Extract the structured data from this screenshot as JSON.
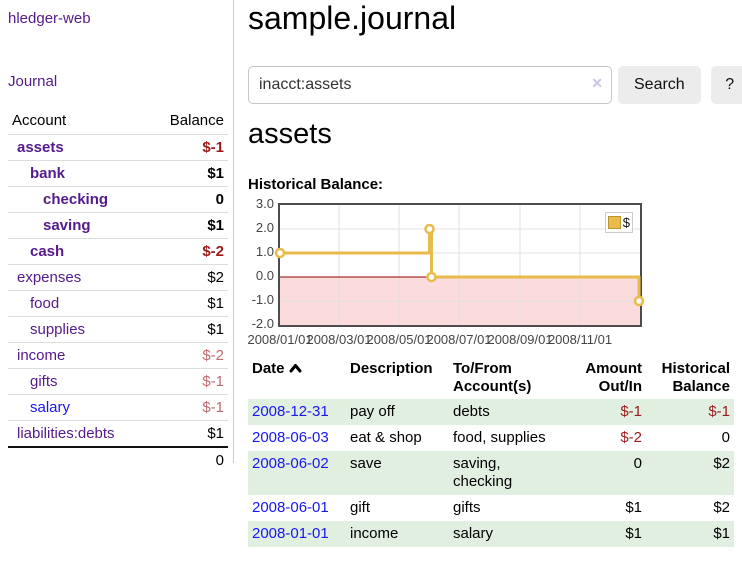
{
  "app": {
    "title": "hledger-web"
  },
  "sidebar": {
    "journal_label": "Journal",
    "headers": {
      "account": "Account",
      "balance": "Balance"
    },
    "rows": [
      {
        "account": "assets",
        "balance": "$-1"
      },
      {
        "account": "bank",
        "balance": "$1"
      },
      {
        "account": "checking",
        "balance": "0"
      },
      {
        "account": "saving",
        "balance": "$1"
      },
      {
        "account": "cash",
        "balance": "$-2"
      },
      {
        "account": "expenses",
        "balance": "$2"
      },
      {
        "account": "food",
        "balance": "$1"
      },
      {
        "account": "supplies",
        "balance": "$1"
      },
      {
        "account": "income",
        "balance": "$-2"
      },
      {
        "account": "gifts",
        "balance": "$-1"
      },
      {
        "account": "salary",
        "balance": "$-1"
      },
      {
        "account": "liabilities:debts",
        "balance": "$1"
      }
    ],
    "total": "0"
  },
  "main": {
    "title": "sample.journal",
    "search": {
      "value": "inacct:assets",
      "clear_icon": "✕",
      "button_label": "Search",
      "help_label": "?"
    },
    "account_heading": "assets",
    "chart_label": "Historical Balance:"
  },
  "chart_data": {
    "type": "line",
    "subtype": "step-after",
    "title": "Historical Balance",
    "x_domain": [
      "2008/01/01",
      "2009/01/01"
    ],
    "ylim": [
      -2,
      3
    ],
    "yticks": [
      "3.0",
      "2.0",
      "1.0",
      "0.0",
      "-1.0",
      "-2.0"
    ],
    "xticks": [
      "2008/01/01",
      "2008/03/01",
      "2008/05/01",
      "2008/07/01",
      "2008/09/01",
      "2008/11/01"
    ],
    "grid": true,
    "legend_position": "top-right",
    "negative_region_color": "#fbdbdb",
    "zero_line_color": "#8b0000",
    "series": [
      {
        "name": "$",
        "color": "#e8bb4a",
        "points": [
          [
            "2008/01/01",
            1
          ],
          [
            "2008/06/01",
            2
          ],
          [
            "2008/06/03",
            0
          ],
          [
            "2008/12/31",
            -1
          ]
        ]
      }
    ]
  },
  "register": {
    "headers": {
      "date": "Date",
      "description": "Description",
      "accounts": "To/From Account(s)",
      "amount": "Amount Out/In",
      "balance": "Historical Balance"
    },
    "rows": [
      {
        "date": "2008-12-31",
        "description": "pay off",
        "accounts": "debts",
        "amount": "$-1",
        "balance": "$-1"
      },
      {
        "date": "2008-06-03",
        "description": "eat & shop",
        "accounts": "food, supplies",
        "amount": "$-2",
        "balance": "0"
      },
      {
        "date": "2008-06-02",
        "description": "save",
        "accounts": "saving, checking",
        "amount": "0",
        "balance": "$2"
      },
      {
        "date": "2008-06-01",
        "description": "gift",
        "accounts": "gifts",
        "amount": "$1",
        "balance": "$2"
      },
      {
        "date": "2008-01-01",
        "description": "income",
        "accounts": "salary",
        "amount": "$1",
        "balance": "$1"
      }
    ]
  }
}
